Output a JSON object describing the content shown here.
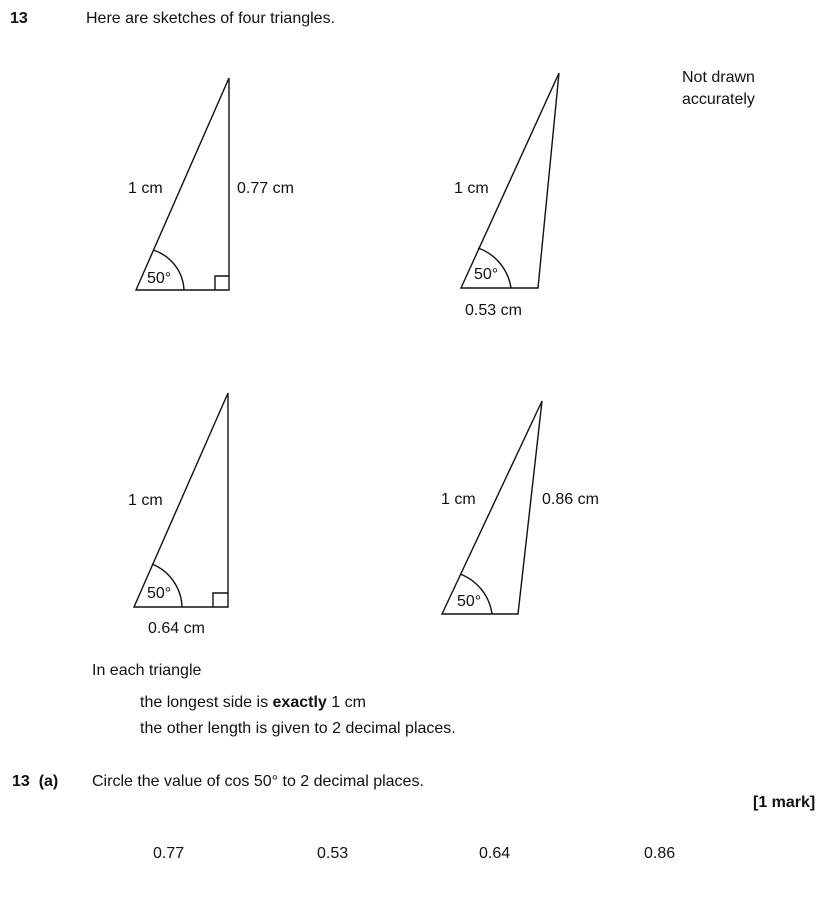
{
  "question": {
    "number": "13",
    "intro": "Here are sketches of four triangles.",
    "note_line1": "Not drawn",
    "note_line2": "accurately"
  },
  "triangles": [
    {
      "hyp": "1 cm",
      "side": "0.77 cm",
      "angle": "50°"
    },
    {
      "hyp": "1 cm",
      "side": "0.53 cm",
      "angle": "50°"
    },
    {
      "hyp": "1 cm",
      "side": "0.64 cm",
      "angle": "50°"
    },
    {
      "hyp": "1 cm",
      "side": "0.86 cm",
      "angle": "50°"
    }
  ],
  "info": {
    "line1": "In each triangle",
    "line2_prefix": "the longest side is ",
    "line2_bold": "exactly",
    "line2_suffix": " 1 cm",
    "line3": "the other length is given to 2 decimal places."
  },
  "part_a": {
    "label": "13  (a)",
    "prompt": "Circle the value of cos 50° to 2 decimal places.",
    "marks": "[1 mark]",
    "options": [
      "0.77",
      "0.53",
      "0.64",
      "0.86"
    ]
  }
}
